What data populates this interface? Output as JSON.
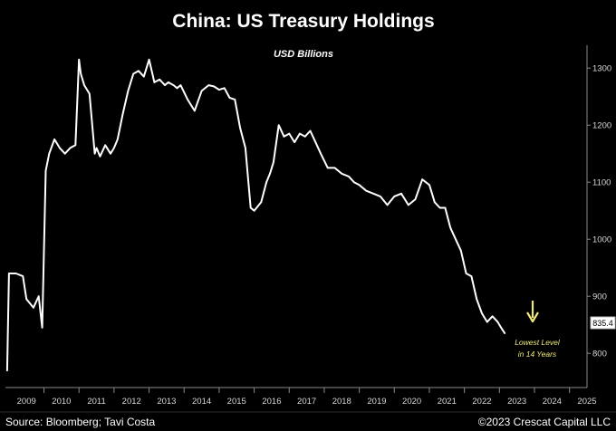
{
  "chart_data": {
    "type": "line",
    "title": "China: US Treasury Holdings",
    "subtitle": "USD Billions",
    "xlabel": "",
    "ylabel": "",
    "ylim": [
      740,
      1340
    ],
    "y_ticks": [
      800,
      900,
      1000,
      1100,
      1200,
      1300
    ],
    "x_ticks": [
      "2009",
      "2010",
      "2011",
      "2012",
      "2013",
      "2014",
      "2015",
      "2016",
      "2017",
      "2018",
      "2019",
      "2020",
      "2021",
      "2022",
      "2023",
      "2024",
      "2025"
    ],
    "xlim": [
      2008.9,
      2025.5
    ],
    "grid": false,
    "legend": "none",
    "y_axis_position": "right",
    "line_color": "#ffffff",
    "series": [
      {
        "x": [
          2008.95,
          2009.0,
          2009.2,
          2009.4,
          2009.5,
          2009.7,
          2009.85,
          2009.95,
          2010.05,
          2010.15,
          2010.3,
          2010.45,
          2010.6,
          2010.75,
          2010.9,
          2011.0,
          2011.05,
          2011.15,
          2011.3,
          2011.45,
          2011.5,
          2011.6,
          2011.75,
          2011.9,
          2012.0,
          2012.1,
          2012.25,
          2012.4,
          2012.55,
          2012.7,
          2012.85,
          2013.0,
          2013.15,
          2013.3,
          2013.45,
          2013.55,
          2013.7,
          2013.8,
          2013.9,
          2014.1,
          2014.3,
          2014.5,
          2014.7,
          2014.85,
          2015.0,
          2015.15,
          2015.3,
          2015.45,
          2015.6,
          2015.75,
          2015.9,
          2016.0,
          2016.2,
          2016.35,
          2016.45,
          2016.55,
          2016.7,
          2016.85,
          2017.0,
          2017.15,
          2017.3,
          2017.45,
          2017.6,
          2017.75,
          2017.9,
          2018.1,
          2018.3,
          2018.5,
          2018.7,
          2018.85,
          2019.0,
          2019.2,
          2019.4,
          2019.6,
          2019.8,
          2020.0,
          2020.2,
          2020.4,
          2020.6,
          2020.8,
          2021.0,
          2021.15,
          2021.3,
          2021.45,
          2021.6,
          2021.75,
          2021.9,
          2022.05,
          2022.2,
          2022.35,
          2022.5,
          2022.65,
          2022.8,
          2022.95,
          2023.05,
          2023.15
        ],
        "values": [
          770,
          940,
          940,
          935,
          895,
          880,
          900,
          845,
          1120,
          1150,
          1175,
          1160,
          1150,
          1160,
          1165,
          1315,
          1290,
          1270,
          1255,
          1150,
          1160,
          1145,
          1165,
          1150,
          1160,
          1175,
          1220,
          1260,
          1290,
          1295,
          1285,
          1315,
          1275,
          1280,
          1270,
          1275,
          1270,
          1265,
          1270,
          1245,
          1225,
          1260,
          1270,
          1268,
          1262,
          1265,
          1248,
          1245,
          1195,
          1160,
          1055,
          1050,
          1065,
          1100,
          1115,
          1135,
          1200,
          1180,
          1185,
          1170,
          1185,
          1180,
          1190,
          1170,
          1150,
          1125,
          1125,
          1115,
          1110,
          1100,
          1095,
          1085,
          1080,
          1075,
          1060,
          1075,
          1080,
          1060,
          1070,
          1105,
          1095,
          1065,
          1055,
          1055,
          1020,
          1000,
          980,
          940,
          935,
          895,
          870,
          855,
          865,
          855,
          845,
          835.4
        ]
      }
    ],
    "last_value_label": "835.4",
    "annotation": {
      "text_line1": "Lowest Level",
      "text_line2": "in 14 Years",
      "color": "#f0e87a"
    }
  },
  "footer": {
    "source": "Source: Bloomberg; Tavi Costa",
    "copyright": "©2023 Crescat Capital LLC"
  },
  "colors": {
    "background": "#000000",
    "axis": "#8a8a8a",
    "arrow": "#f0e87a"
  }
}
